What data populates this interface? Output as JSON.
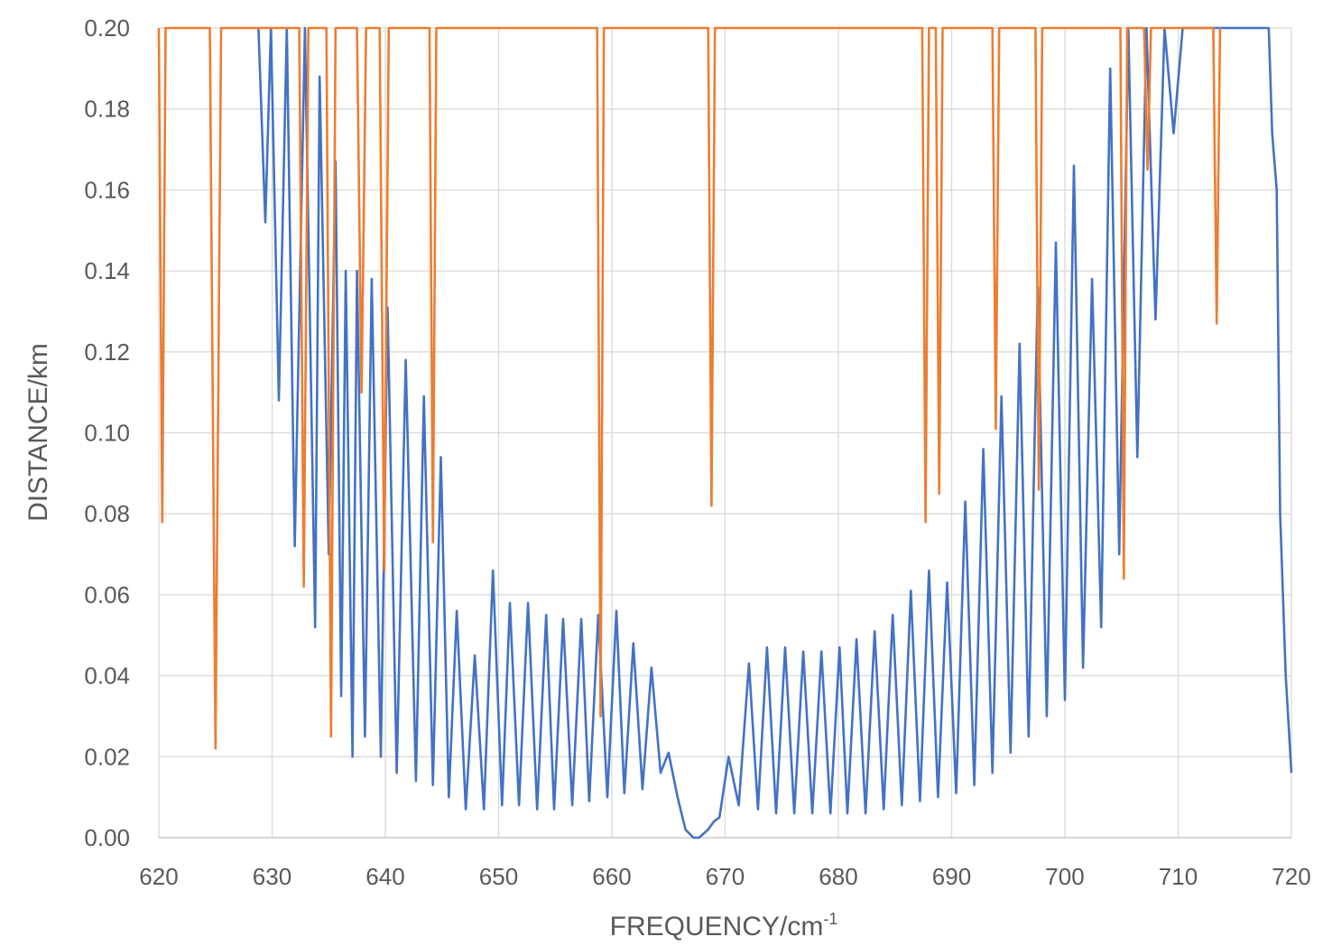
{
  "chart_data": {
    "type": "line",
    "xlabel": "FREQUENCY/cm",
    "xlabel_superscript": "-1",
    "ylabel": "DISTANCE/km",
    "xlim": [
      620,
      720
    ],
    "ylim": [
      0,
      0.2
    ],
    "x_ticks": [
      620,
      630,
      640,
      650,
      660,
      670,
      680,
      690,
      700,
      710,
      720
    ],
    "y_ticks": [
      0.0,
      0.02,
      0.04,
      0.06,
      0.08,
      0.1,
      0.12,
      0.14,
      0.16,
      0.18,
      0.2
    ],
    "x_tick_labels": [
      "620",
      "630",
      "640",
      "650",
      "660",
      "670",
      "680",
      "690",
      "700",
      "710",
      "720"
    ],
    "y_tick_labels": [
      "0.00",
      "0.02",
      "0.04",
      "0.06",
      "0.08",
      "0.10",
      "0.12",
      "0.14",
      "0.16",
      "0.18",
      "0.20"
    ],
    "grid": true,
    "legend": "none",
    "series": [
      {
        "color": "#4472c4",
        "x": [
          628.8,
          629.4,
          629.9,
          630.6,
          631.3,
          632.0,
          632.9,
          633.8,
          634.2,
          635.0,
          635.6,
          636.1,
          636.5,
          637.1,
          637.5,
          638.2,
          638.8,
          639.6,
          640.2,
          641.0,
          641.8,
          642.7,
          643.4,
          644.2,
          644.9,
          645.6,
          646.3,
          647.1,
          647.9,
          648.7,
          649.5,
          650.3,
          651.0,
          651.8,
          652.6,
          653.4,
          654.2,
          654.9,
          655.7,
          656.5,
          657.3,
          658.0,
          658.8,
          659.6,
          660.4,
          661.1,
          661.9,
          662.7,
          663.5,
          664.3,
          665.0,
          665.8,
          666.5,
          667.2,
          667.7,
          668.5,
          669.0,
          669.5,
          670.3,
          671.2,
          672.1,
          672.9,
          673.7,
          674.5,
          675.3,
          676.1,
          676.9,
          677.7,
          678.5,
          679.3,
          680.1,
          680.8,
          681.6,
          682.4,
          683.2,
          684.0,
          684.8,
          685.6,
          686.4,
          687.2,
          688.0,
          688.8,
          689.6,
          690.4,
          691.2,
          692.0,
          692.8,
          693.6,
          694.4,
          695.2,
          696.0,
          696.8,
          697.6,
          698.4,
          699.2,
          700.0,
          700.8,
          701.6,
          702.4,
          703.2,
          704.0,
          704.8,
          705.6,
          706.4,
          707.2,
          708.0,
          708.8,
          709.6,
          710.4,
          711.2,
          712.0,
          713.0,
          714.0,
          715.0,
          716.0,
          717.0,
          718.0,
          718.3,
          718.7,
          719.0,
          719.5,
          720.0
        ],
        "y": [
          0.2,
          0.152,
          0.2,
          0.108,
          0.2,
          0.072,
          0.2,
          0.052,
          0.188,
          0.07,
          0.167,
          0.035,
          0.14,
          0.02,
          0.14,
          0.025,
          0.138,
          0.02,
          0.131,
          0.016,
          0.118,
          0.014,
          0.109,
          0.013,
          0.094,
          0.01,
          0.056,
          0.007,
          0.045,
          0.007,
          0.066,
          0.008,
          0.058,
          0.008,
          0.058,
          0.007,
          0.055,
          0.007,
          0.054,
          0.008,
          0.054,
          0.009,
          0.055,
          0.01,
          0.056,
          0.011,
          0.048,
          0.012,
          0.042,
          0.016,
          0.021,
          0.01,
          0.002,
          0.0,
          0.0,
          0.002,
          0.004,
          0.005,
          0.02,
          0.008,
          0.043,
          0.007,
          0.047,
          0.006,
          0.047,
          0.006,
          0.046,
          0.006,
          0.046,
          0.006,
          0.047,
          0.006,
          0.049,
          0.006,
          0.051,
          0.007,
          0.055,
          0.008,
          0.061,
          0.009,
          0.066,
          0.01,
          0.063,
          0.011,
          0.083,
          0.013,
          0.096,
          0.016,
          0.109,
          0.021,
          0.122,
          0.025,
          0.136,
          0.03,
          0.147,
          0.034,
          0.166,
          0.042,
          0.138,
          0.052,
          0.19,
          0.07,
          0.2,
          0.094,
          0.2,
          0.128,
          0.2,
          0.174,
          0.2,
          0.2,
          0.2,
          0.2,
          0.2,
          0.2,
          0.2,
          0.2,
          0.2,
          0.174,
          0.16,
          0.08,
          0.04,
          0.016
        ]
      },
      {
        "color": "#ed7d31",
        "x": [
          620.0,
          620.3,
          620.6,
          624.5,
          625.0,
          625.5,
          632.4,
          632.8,
          633.2,
          634.8,
          635.2,
          635.6,
          637.5,
          637.9,
          638.3,
          639.5,
          639.9,
          640.3,
          643.9,
          644.2,
          644.5,
          658.7,
          659.0,
          659.3,
          668.5,
          668.8,
          669.1,
          687.4,
          687.7,
          688.0,
          688.6,
          688.9,
          689.2,
          693.6,
          693.9,
          694.2,
          697.4,
          697.7,
          698.0,
          704.9,
          705.2,
          705.5,
          707.0,
          707.3,
          707.6,
          713.1,
          713.4,
          713.7
        ],
        "y": [
          0.2,
          0.078,
          0.2,
          0.2,
          0.022,
          0.2,
          0.2,
          0.062,
          0.2,
          0.2,
          0.025,
          0.2,
          0.2,
          0.11,
          0.2,
          0.2,
          0.066,
          0.2,
          0.2,
          0.073,
          0.2,
          0.2,
          0.03,
          0.2,
          0.2,
          0.082,
          0.2,
          0.2,
          0.078,
          0.2,
          0.2,
          0.085,
          0.2,
          0.2,
          0.101,
          0.2,
          0.2,
          0.086,
          0.2,
          0.2,
          0.064,
          0.2,
          0.2,
          0.165,
          0.2,
          0.2,
          0.127,
          0.2
        ]
      }
    ]
  }
}
